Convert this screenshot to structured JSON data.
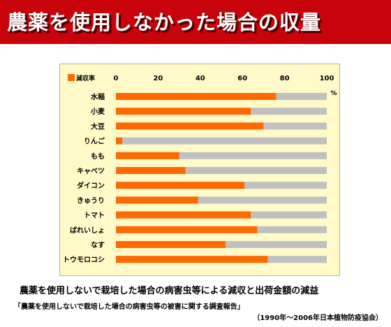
{
  "page": {
    "title": "農薬を使用しなかった場合の収量",
    "caption": "農薬を使用しないで栽培した場合の病害虫等による減収と出荷金額の減益",
    "subcaption": "「農薬を使用しないで栽培した場合の病害虫等の被害に関する調査報告」",
    "source": "（1990年～2006年日本植物防疫協会）"
  },
  "colors": {
    "header_bg": "#c8030b",
    "panel_bg": "#fffac8",
    "bar_reduction": "#ff6a00",
    "bar_remaining": "#c0c0c0"
  },
  "chart_data": {
    "type": "bar",
    "orientation": "horizontal",
    "stacked": true,
    "unit_label": "%",
    "xlim": [
      0,
      100
    ],
    "x_ticks": [
      0,
      20,
      40,
      60,
      80,
      100
    ],
    "grid": false,
    "legend_position": "top-left",
    "categories": [
      "水稲",
      "小麦",
      "大豆",
      "りんご",
      "もも",
      "キャベツ",
      "ダイコン",
      "きゅうり",
      "トマト",
      "ばれいしょ",
      "なす",
      "トウモロコシ"
    ],
    "series": [
      {
        "name": "減収率",
        "values": [
          76,
          64,
          70,
          3,
          30,
          33,
          61,
          39,
          64,
          67,
          52,
          72
        ]
      }
    ],
    "total": 100
  }
}
